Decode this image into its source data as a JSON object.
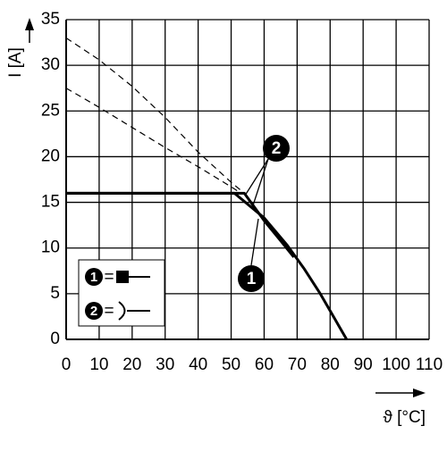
{
  "chart_data": {
    "type": "line",
    "xlabel": "ϑ [°C]",
    "ylabel": "I [A]",
    "xlim": [
      0,
      110
    ],
    "xticks": [
      0,
      10,
      20,
      30,
      40,
      50,
      60,
      70,
      80,
      90,
      100,
      110
    ],
    "ylim": [
      0,
      35
    ],
    "yticks": [
      0,
      5,
      10,
      15,
      20,
      25,
      30,
      35
    ],
    "grid": true,
    "series": [
      {
        "name": "1",
        "color": "#000000",
        "x": [
          0,
          51,
          60,
          67,
          72,
          77,
          81,
          85
        ],
        "values": [
          16,
          16,
          13.3,
          10.3,
          7.8,
          5,
          2.5,
          0
        ]
      },
      {
        "name": "2",
        "color": "#000000",
        "x": [
          0,
          54,
          60,
          65,
          69
        ],
        "values": [
          16,
          16,
          13,
          10.8,
          9
        ]
      },
      {
        "color": "#000000",
        "dashed": true,
        "x": [
          0,
          10,
          20,
          30,
          40,
          50,
          54
        ],
        "values": [
          33,
          30.6,
          27.7,
          24.3,
          20.5,
          17.2,
          16
        ]
      },
      {
        "color": "#000000",
        "dashed": true,
        "x": [
          0,
          10,
          20,
          30,
          40,
          50,
          53
        ],
        "values": [
          27.5,
          25.4,
          23.2,
          21,
          18.9,
          16.7,
          16
        ]
      }
    ]
  }
}
